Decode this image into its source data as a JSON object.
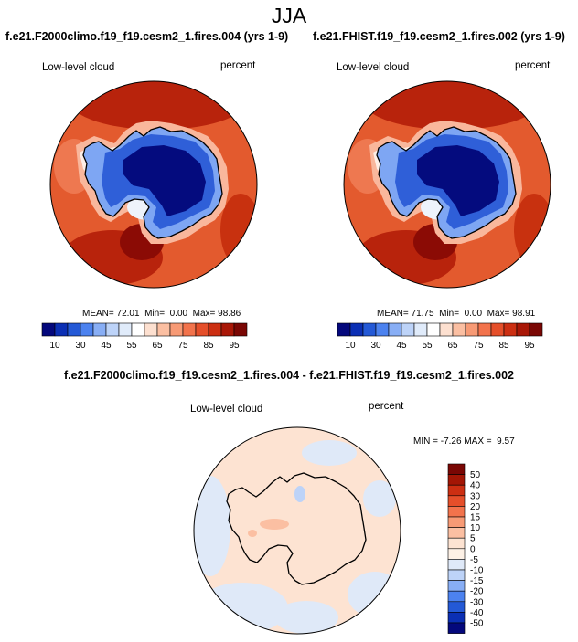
{
  "page_title": "JJA",
  "chart_data": [
    {
      "type": "heatmap",
      "projection": "south-polar-stereographic",
      "title": "f.e21.F2000climo.f19_f19.cesm2_1.fires.004 (yrs 1-9)",
      "left_label": "Low-level cloud",
      "right_label": "percent",
      "stats": {
        "mean_label": "MEAN=",
        "mean": "72.01",
        "min_label": "Min=",
        "min": "0.00",
        "max_label": "Max=",
        "max": "98.86"
      },
      "colorbar": {
        "orientation": "horizontal",
        "levels": [
          "10",
          "30",
          "45",
          "55",
          "65",
          "75",
          "85",
          "95"
        ],
        "colors": [
          "#04087c",
          "#0b2fb4",
          "#2459d6",
          "#4c82ef",
          "#88aef5",
          "#bdd3f8",
          "#e0ebfa",
          "#ffffff",
          "#fde0d0",
          "#fbbfa2",
          "#f79a75",
          "#f2734c",
          "#e54f2a",
          "#cc2f12",
          "#a91707",
          "#7a0704"
        ]
      },
      "summary": "Low cloud near 0 over the Antarctic interior, 70-95 percent over the surrounding ocean, highest (above 95) in the Southern Ocean sectors"
    },
    {
      "type": "heatmap",
      "projection": "south-polar-stereographic",
      "title": "f.e21.FHIST.f19_f19.cesm2_1.fires.002 (yrs 1-9)",
      "left_label": "Low-level cloud",
      "right_label": "percent",
      "stats": {
        "mean_label": "MEAN=",
        "mean": "71.75",
        "min_label": "Min=",
        "min": "0.00",
        "max_label": "Max=",
        "max": "98.91"
      },
      "colorbar": {
        "orientation": "horizontal",
        "levels": [
          "10",
          "30",
          "45",
          "55",
          "65",
          "75",
          "85",
          "95"
        ],
        "colors": [
          "#04087c",
          "#0b2fb4",
          "#2459d6",
          "#4c82ef",
          "#88aef5",
          "#bdd3f8",
          "#e0ebfa",
          "#ffffff",
          "#fde0d0",
          "#fbbfa2",
          "#f79a75",
          "#f2734c",
          "#e54f2a",
          "#cc2f12",
          "#a91707",
          "#7a0704"
        ]
      },
      "summary": "Nearly identical pattern to the first panel"
    },
    {
      "type": "heatmap",
      "projection": "south-polar-stereographic",
      "title": "f.e21.F2000climo.f19_f19.cesm2_1.fires.004 - f.e21.FHIST.f19_f19.cesm2_1.fires.002",
      "left_label": "Low-level cloud",
      "right_label": "percent",
      "stats": {
        "min_label": "MIN =",
        "min": "-7.26",
        "max_label": "MAX =",
        "max": "9.57"
      },
      "colorbar": {
        "orientation": "vertical",
        "levels": [
          "50",
          "40",
          "30",
          "20",
          "15",
          "10",
          "5",
          "0",
          "-5",
          "-10",
          "-15",
          "-20",
          "-30",
          "-40",
          "-50"
        ],
        "colors": [
          "#7a0704",
          "#a31605",
          "#cc2f12",
          "#e54f2a",
          "#f2734c",
          "#f79a75",
          "#fbbfa2",
          "#fde3d2",
          "#fdf1e6",
          "#dfe9f8",
          "#bdd3f8",
          "#88aef5",
          "#4c82ef",
          "#2459d6",
          "#0b2fb4",
          "#04087c"
        ]
      },
      "summary": "Differences mostly small: slight positive (0 to 5) over most of the domain, slight negative (-5 to 0) patches over parts of the ocean"
    }
  ]
}
